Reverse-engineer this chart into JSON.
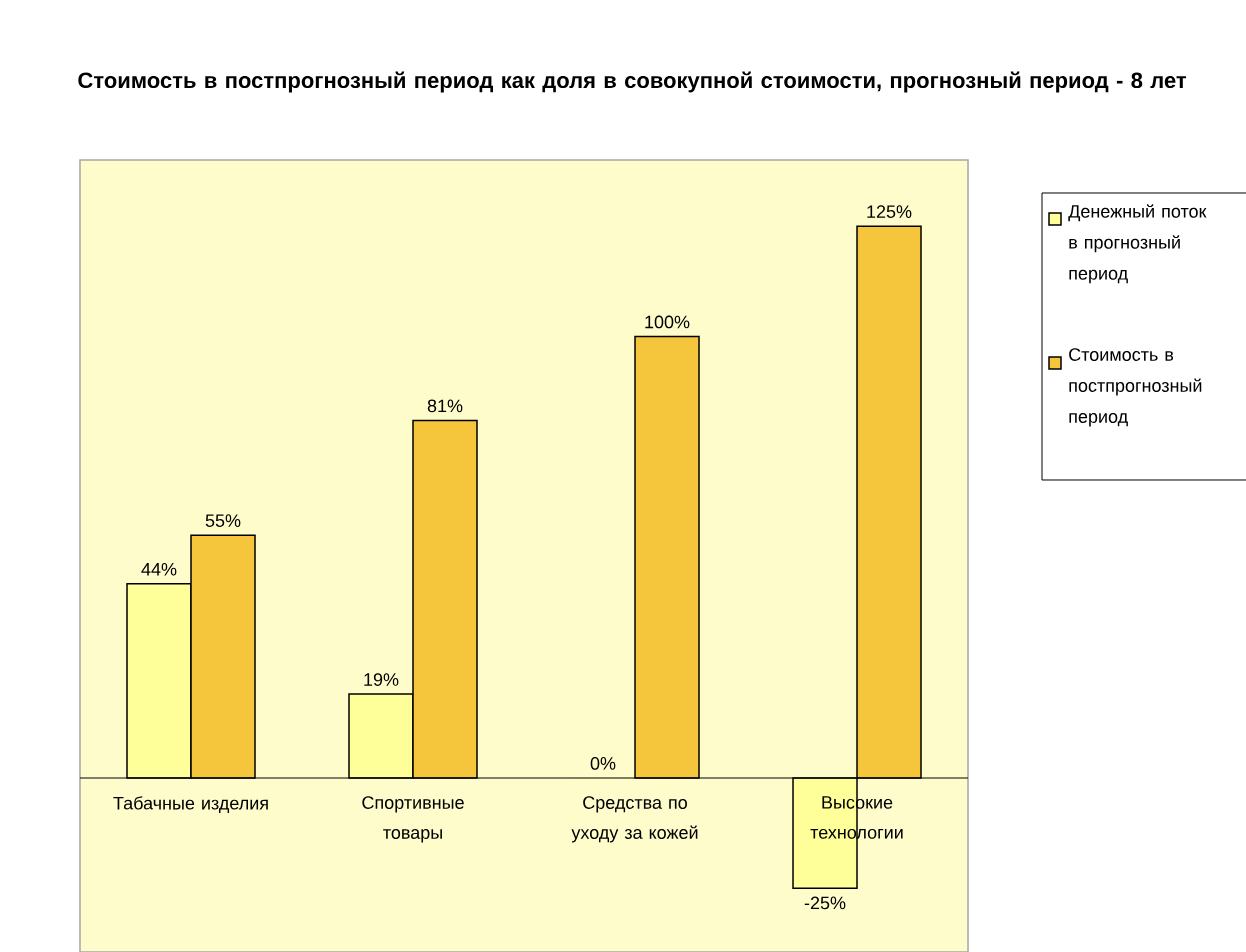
{
  "chart_data": {
    "type": "bar",
    "title": "Стоимость в постпрогнозный период как доля в совокупной стоимости, прогнозный период - 8 лет",
    "categories": [
      "Табачные изделия",
      "Спортивные товары",
      "Средства по уходу за кожей",
      "Высокие технологии"
    ],
    "series": [
      {
        "name": "Денежный поток в прогнозный период",
        "color": "#ffff99",
        "values": [
          44,
          19,
          0,
          -25
        ],
        "value_labels": [
          "44%",
          "19%",
          "0%",
          "-25%"
        ]
      },
      {
        "name": "Стоимость в постпрогнозный период",
        "color": "#f5c63c",
        "values": [
          55,
          81,
          100,
          125
        ],
        "value_labels": [
          "55%",
          "81%",
          "100%",
          "125%"
        ]
      }
    ],
    "legend": "right"
  }
}
